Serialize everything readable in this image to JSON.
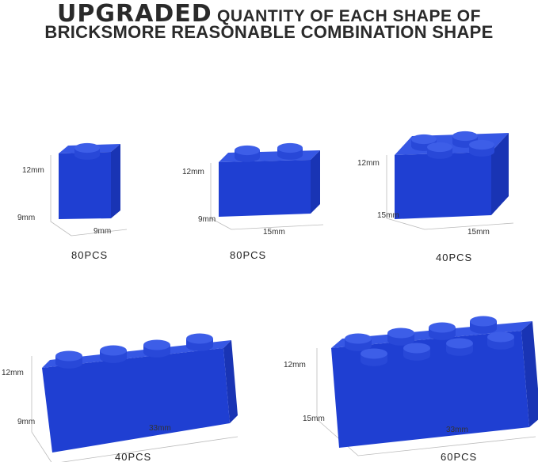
{
  "header": {
    "highlight": "UPGRADED",
    "line1_rest": "QUANTITY OF EACH SHAPE OF",
    "line2": "BRICKSMORE REASONABLE COMBINATION SHAPE"
  },
  "colors": {
    "brick_front": "#1f3fd2",
    "brick_top": "#3657e4",
    "brick_side": "#1934b4",
    "stud": "#3d5ee8"
  },
  "bricks": [
    {
      "height": "12mm",
      "depth": "9mm",
      "length": "9mm",
      "quantity": "80PCS"
    },
    {
      "height": "12mm",
      "depth": "9mm",
      "length": "15mm",
      "quantity": "80PCS"
    },
    {
      "height": "12mm",
      "depth": "15mm",
      "length": "15mm",
      "quantity": "40PCS"
    },
    {
      "height": "12mm",
      "depth": "9mm",
      "length": "33mm",
      "quantity": "40PCS"
    },
    {
      "height": "12mm",
      "depth": "15mm",
      "length": "33mm",
      "quantity": "60PCS"
    }
  ]
}
